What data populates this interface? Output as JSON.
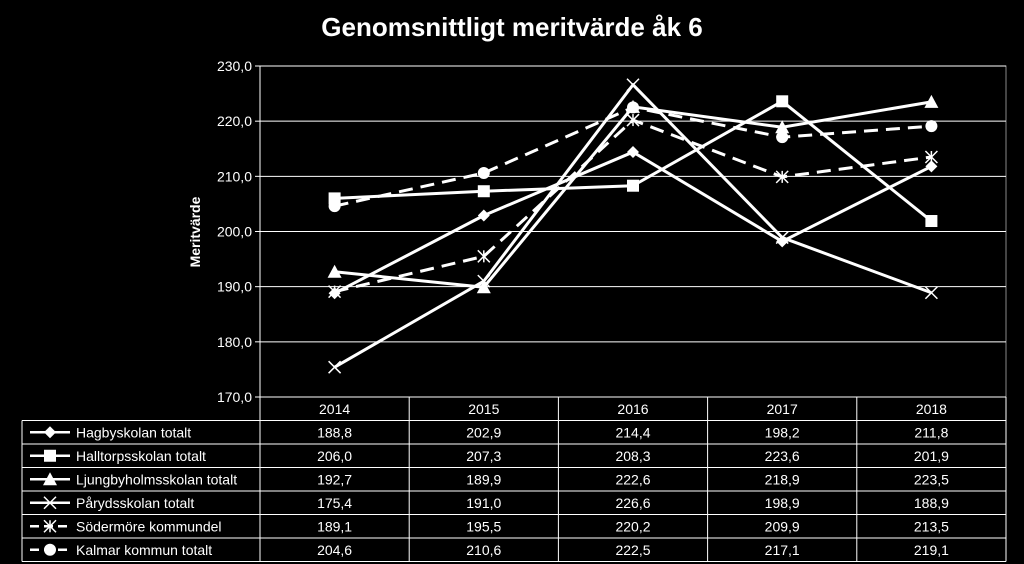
{
  "chart_data": {
    "type": "line",
    "title": "Genomsnittligt meritvärde åk 6",
    "ylabel": "Meritvärde",
    "xlabel": "",
    "categories": [
      "2014",
      "2015",
      "2016",
      "2017",
      "2018"
    ],
    "ylim": [
      170,
      230
    ],
    "yticks": [
      "230,0",
      "220,0",
      "210,0",
      "200,0",
      "190,0",
      "180,0",
      "170,0"
    ],
    "grid": true,
    "legend": "data-table",
    "series": [
      {
        "name": "Hagbyskolan totalt",
        "values": [
          188.8,
          202.9,
          214.4,
          198.2,
          211.8
        ],
        "labels": [
          "188,8",
          "202,9",
          "214,4",
          "198,2",
          "211,8"
        ],
        "marker": "diamond",
        "dash": false
      },
      {
        "name": "Halltorpsskolan totalt",
        "values": [
          206.0,
          207.3,
          208.3,
          223.6,
          201.9
        ],
        "labels": [
          "206,0",
          "207,3",
          "208,3",
          "223,6",
          "201,9"
        ],
        "marker": "square",
        "dash": false
      },
      {
        "name": "Ljungbyholmsskolan totalt",
        "values": [
          192.7,
          189.9,
          222.6,
          218.9,
          223.5
        ],
        "labels": [
          "192,7",
          "189,9",
          "222,6",
          "218,9",
          "223,5"
        ],
        "marker": "triangle",
        "dash": false
      },
      {
        "name": "Pårydsskolan totalt",
        "values": [
          175.4,
          191.0,
          226.6,
          198.9,
          188.9
        ],
        "labels": [
          "175,4",
          "191,0",
          "226,6",
          "198,9",
          "188,9"
        ],
        "marker": "x",
        "dash": false
      },
      {
        "name": "Södermöre kommundel",
        "values": [
          189.1,
          195.5,
          220.2,
          209.9,
          213.5
        ],
        "labels": [
          "189,1",
          "195,5",
          "220,2",
          "209,9",
          "213,5"
        ],
        "marker": "star",
        "dash": true
      },
      {
        "name": "Kalmar kommun totalt",
        "values": [
          204.6,
          210.6,
          222.5,
          217.1,
          219.1
        ],
        "labels": [
          "204,6",
          "210,6",
          "222,5",
          "217,1",
          "219,1"
        ],
        "marker": "circle",
        "dash": true
      }
    ],
    "colors": {
      "background": "#000000",
      "line": "#ffffff",
      "grid": "#ffffff"
    }
  }
}
